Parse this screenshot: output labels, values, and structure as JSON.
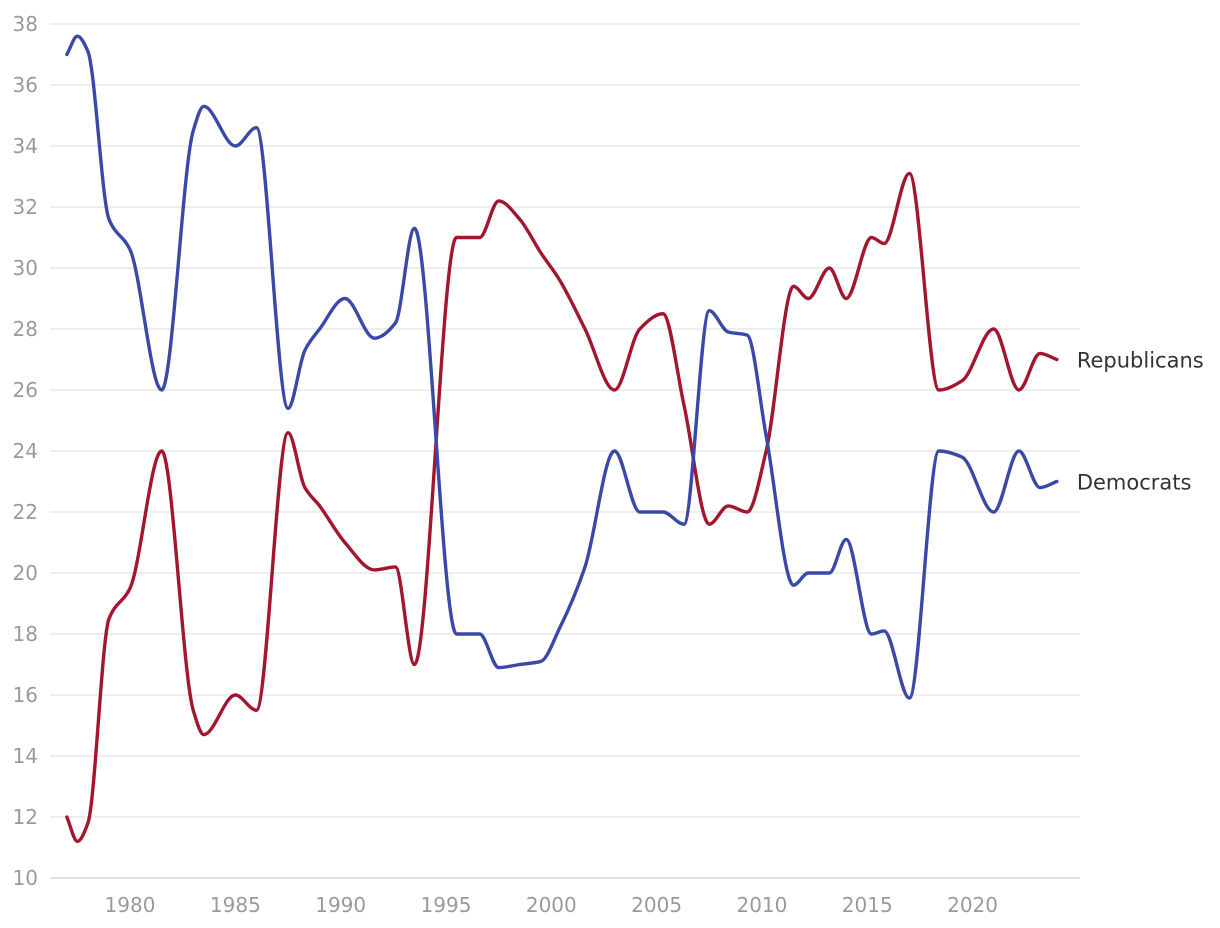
{
  "chart_data": {
    "type": "line",
    "x": [
      1977,
      1977.5,
      1978,
      1979,
      1980,
      1981.5,
      1983,
      1983.5,
      1985,
      1986,
      1987.5,
      1988.3,
      1989,
      1990.2,
      1991.6,
      1992.6,
      1993.5,
      1995.5,
      1996.6,
      1997.5,
      1998.5,
      1999.5,
      2000.4,
      2001.6,
      2003,
      2004.2,
      2005.3,
      2006.3,
      2007.5,
      2008.4,
      2009.3,
      2010.2,
      2011.5,
      2012.2,
      2013.2,
      2014,
      2015.2,
      2015.8,
      2017,
      2018.4,
      2019.5,
      2021,
      2022.2,
      2023.2,
      2024
    ],
    "ylim": [
      10,
      38
    ],
    "xlim": [
      1976.2,
      2025.1
    ],
    "y_ticks": [
      10,
      12,
      14,
      16,
      18,
      20,
      22,
      24,
      26,
      28,
      30,
      32,
      34,
      36,
      38
    ],
    "x_ticks": [
      1980,
      1985,
      1990,
      1995,
      2000,
      2005,
      2010,
      2015,
      2020
    ],
    "grid": true,
    "legend": "end-of-line labels",
    "series": [
      {
        "name": "Republicans",
        "color": "#a3162f",
        "values": [
          12,
          11.2,
          11.8,
          18.5,
          19.5,
          24,
          15.5,
          14.7,
          16,
          15.5,
          24.6,
          22.8,
          22.2,
          21,
          20.1,
          20.2,
          17,
          31,
          31,
          32.2,
          31.6,
          30.5,
          29.6,
          28,
          26,
          28,
          28.5,
          25.5,
          21.6,
          22.2,
          22,
          24,
          29.4,
          29,
          30,
          29,
          31,
          30.8,
          33.1,
          26,
          26.3,
          28,
          26,
          27.2,
          27
        ]
      },
      {
        "name": "Democrats",
        "color": "#3a49a8",
        "values": [
          37,
          37.6,
          37.1,
          31.6,
          30.6,
          26,
          34.5,
          35.3,
          34,
          34.6,
          25.4,
          27.3,
          28,
          29,
          27.7,
          28.2,
          31.3,
          18,
          18,
          16.9,
          17,
          17.1,
          18.2,
          20.2,
          24,
          22,
          22,
          21.6,
          28.6,
          27.9,
          27.8,
          24.5,
          19.6,
          20,
          20,
          21.1,
          18,
          18.1,
          15.9,
          24,
          23.8,
          22,
          24,
          22.8,
          23
        ]
      }
    ]
  }
}
